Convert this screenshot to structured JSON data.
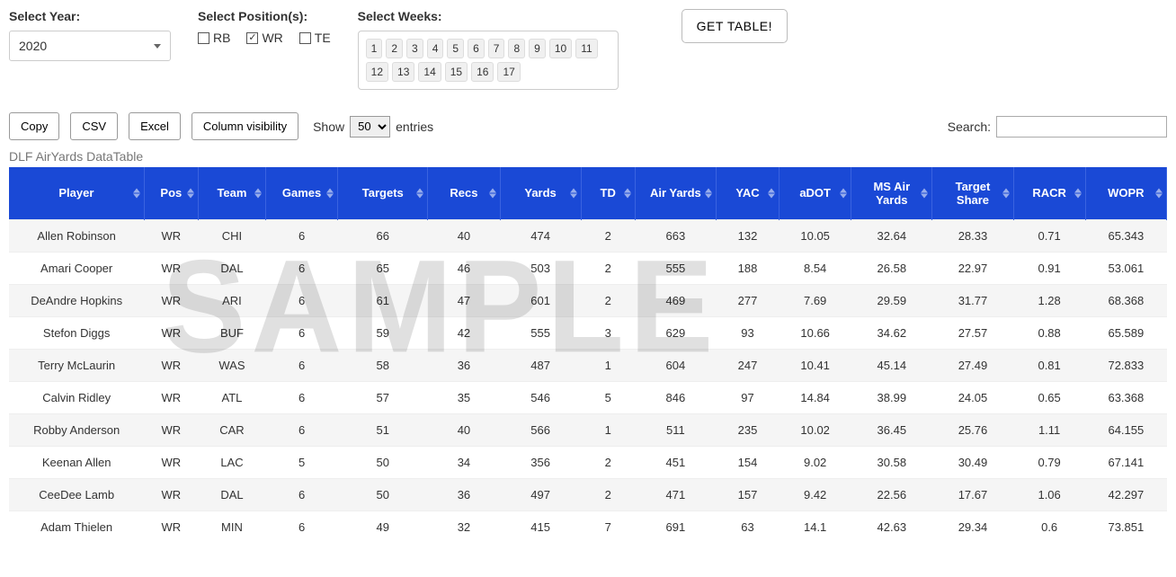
{
  "watermark_text": "SAMPLE",
  "controls": {
    "year_label": "Select Year:",
    "year_value": "2020",
    "positions_label": "Select Position(s):",
    "positions": [
      {
        "value": "RB",
        "checked": false
      },
      {
        "value": "WR",
        "checked": true
      },
      {
        "value": "TE",
        "checked": false
      }
    ],
    "weeks_label": "Select Weeks:",
    "weeks": [
      "1",
      "2",
      "3",
      "4",
      "5",
      "6",
      "7",
      "8",
      "9",
      "10",
      "11",
      "12",
      "13",
      "14",
      "15",
      "16",
      "17"
    ],
    "get_table_label": "GET TABLE!"
  },
  "toolbar": {
    "buttons": [
      "Copy",
      "CSV",
      "Excel",
      "Column visibility"
    ],
    "show_prefix": "Show",
    "entries_value": "50",
    "entries_suffix": "entries",
    "search_label": "Search:"
  },
  "table": {
    "caption": "DLF AirYards DataTable",
    "header_bg": "#1a49d6",
    "header_fg": "#ffffff",
    "row_odd_bg": "#f5f5f5",
    "row_even_bg": "#ffffff",
    "columns": [
      {
        "key": "player",
        "label": "Player",
        "width_class": "c-player"
      },
      {
        "key": "pos",
        "label": "Pos",
        "width_class": "c-pos"
      },
      {
        "key": "team",
        "label": "Team",
        "width_class": "c-team"
      },
      {
        "key": "games",
        "label": "Games",
        "width_class": "c-games"
      },
      {
        "key": "targets",
        "label": "Targets",
        "width_class": "c-targets"
      },
      {
        "key": "recs",
        "label": "Recs",
        "width_class": "c-recs"
      },
      {
        "key": "yards",
        "label": "Yards",
        "width_class": "c-yards"
      },
      {
        "key": "td",
        "label": "TD",
        "width_class": "c-td"
      },
      {
        "key": "air",
        "label": "Air Yards",
        "width_class": "c-air"
      },
      {
        "key": "yac",
        "label": "YAC",
        "width_class": "c-yac"
      },
      {
        "key": "adot",
        "label": "aDOT",
        "width_class": "c-adot"
      },
      {
        "key": "msair",
        "label": "MS Air Yards",
        "width_class": "c-msair"
      },
      {
        "key": "tshare",
        "label": "Target Share",
        "width_class": "c-tshare"
      },
      {
        "key": "racr",
        "label": "RACR",
        "width_class": "c-racr"
      },
      {
        "key": "wopr",
        "label": "WOPR",
        "width_class": "c-wopr"
      }
    ],
    "rows": [
      [
        "Allen Robinson",
        "WR",
        "CHI",
        "6",
        "66",
        "40",
        "474",
        "2",
        "663",
        "132",
        "10.05",
        "32.64",
        "28.33",
        "0.71",
        "65.343"
      ],
      [
        "Amari Cooper",
        "WR",
        "DAL",
        "6",
        "65",
        "46",
        "503",
        "2",
        "555",
        "188",
        "8.54",
        "26.58",
        "22.97",
        "0.91",
        "53.061"
      ],
      [
        "DeAndre Hopkins",
        "WR",
        "ARI",
        "6",
        "61",
        "47",
        "601",
        "2",
        "469",
        "277",
        "7.69",
        "29.59",
        "31.77",
        "1.28",
        "68.368"
      ],
      [
        "Stefon Diggs",
        "WR",
        "BUF",
        "6",
        "59",
        "42",
        "555",
        "3",
        "629",
        "93",
        "10.66",
        "34.62",
        "27.57",
        "0.88",
        "65.589"
      ],
      [
        "Terry McLaurin",
        "WR",
        "WAS",
        "6",
        "58",
        "36",
        "487",
        "1",
        "604",
        "247",
        "10.41",
        "45.14",
        "27.49",
        "0.81",
        "72.833"
      ],
      [
        "Calvin Ridley",
        "WR",
        "ATL",
        "6",
        "57",
        "35",
        "546",
        "5",
        "846",
        "97",
        "14.84",
        "38.99",
        "24.05",
        "0.65",
        "63.368"
      ],
      [
        "Robby Anderson",
        "WR",
        "CAR",
        "6",
        "51",
        "40",
        "566",
        "1",
        "511",
        "235",
        "10.02",
        "36.45",
        "25.76",
        "1.11",
        "64.155"
      ],
      [
        "Keenan Allen",
        "WR",
        "LAC",
        "5",
        "50",
        "34",
        "356",
        "2",
        "451",
        "154",
        "9.02",
        "30.58",
        "30.49",
        "0.79",
        "67.141"
      ],
      [
        "CeeDee Lamb",
        "WR",
        "DAL",
        "6",
        "50",
        "36",
        "497",
        "2",
        "471",
        "157",
        "9.42",
        "22.56",
        "17.67",
        "1.06",
        "42.297"
      ],
      [
        "Adam Thielen",
        "WR",
        "MIN",
        "6",
        "49",
        "32",
        "415",
        "7",
        "691",
        "63",
        "14.1",
        "42.63",
        "29.34",
        "0.6",
        "73.851"
      ]
    ]
  }
}
